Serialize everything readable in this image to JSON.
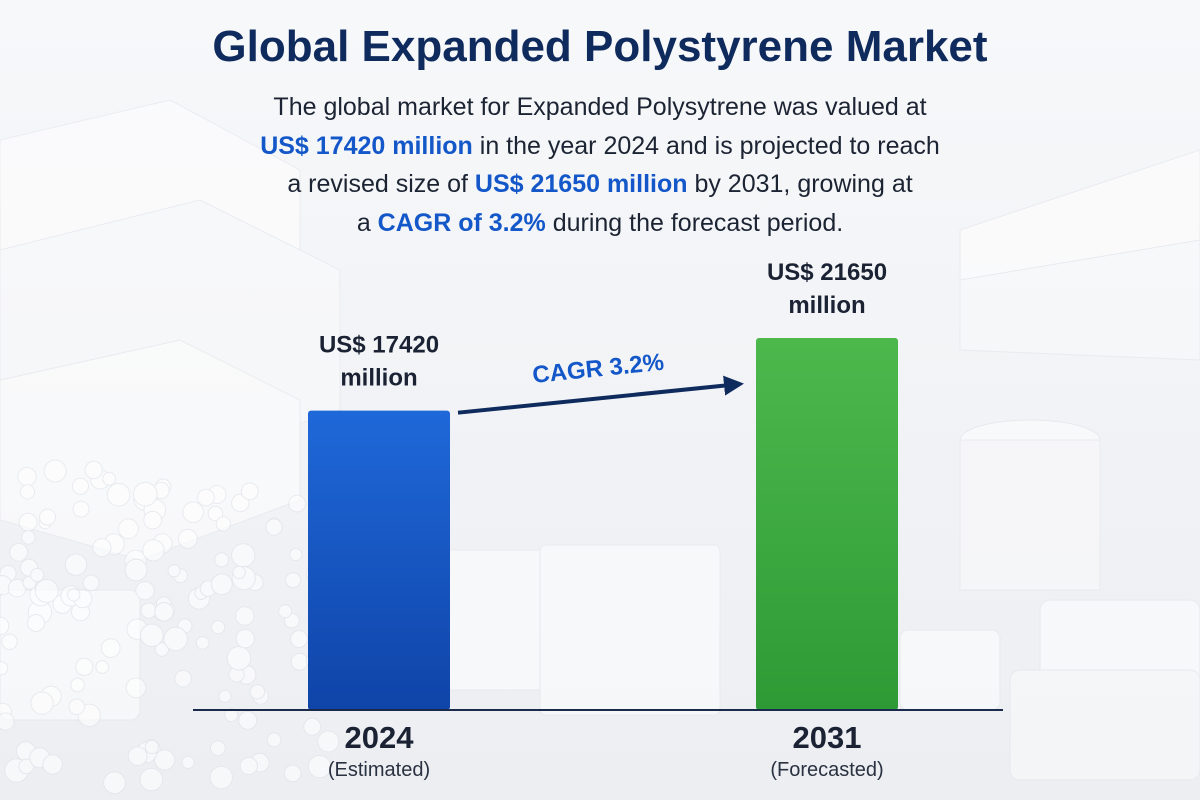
{
  "title": "Global Expanded Polystyrene Market",
  "summary": {
    "l1": "The global market for Expanded Polysytrene was valued at",
    "value_2024": "US$ 17420 million",
    "l2": " in the year 2024 and is projected to reach",
    "l3": "a revised size of ",
    "value_2031": "US$ 21650 million",
    "l4": " by 2031, growing at",
    "l5": "a ",
    "cagr": "CAGR of 3.2%",
    "l6": " during the forecast period."
  },
  "colors": {
    "title": "#0f2a5c",
    "highlight": "#1357c9",
    "bar_2024": "#1657c8",
    "bar_2031": "#3fa63f",
    "arrow": "#0f2a5c",
    "cagr_label": "#1357c9",
    "axis": "#1a2a4a"
  },
  "chart_data": {
    "type": "bar",
    "categories": [
      "2024",
      "2031"
    ],
    "category_notes": [
      "(Estimated)",
      "(Forecasted)"
    ],
    "values": [
      17420,
      21650
    ],
    "unit": "US$ million",
    "value_labels": [
      [
        "US$ 17420",
        "million"
      ],
      [
        "US$ 21650",
        "million"
      ]
    ],
    "annotation": "CAGR 3.2%",
    "ylim": [
      0,
      24000
    ],
    "grid": false,
    "legend": "none"
  }
}
